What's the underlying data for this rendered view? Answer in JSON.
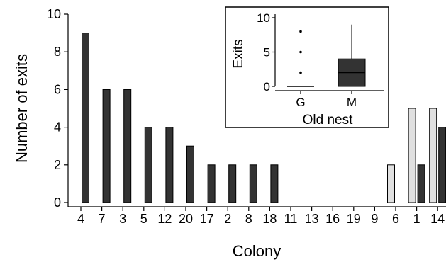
{
  "chart_data": [
    {
      "type": "bar",
      "xlabel": "Colony",
      "ylabel": "Number of exits",
      "ylim": [
        0,
        10
      ],
      "yticks": [
        0,
        2,
        4,
        6,
        8,
        10
      ],
      "categories": [
        "4",
        "7",
        "3",
        "5",
        "12",
        "20",
        "17",
        "2",
        "8",
        "18",
        "11",
        "13",
        "16",
        "19",
        "9",
        "6",
        "1",
        "14"
      ],
      "series": [
        {
          "color": "#e0e0e0",
          "values": [
            0,
            0,
            0,
            0,
            0,
            0,
            0,
            0,
            0,
            0,
            0,
            0,
            0,
            0,
            0,
            2,
            5,
            5
          ]
        },
        {
          "color": "#333333",
          "values": [
            9,
            6,
            6,
            4,
            4,
            3,
            2,
            2,
            2,
            2,
            0,
            0,
            0,
            0,
            0,
            0,
            2,
            4
          ]
        }
      ]
    },
    {
      "type": "box",
      "xlabel": "Old nest",
      "ylabel": "Exits",
      "ylim": [
        0,
        10
      ],
      "yticks": [
        0,
        5,
        10
      ],
      "categories": [
        "G",
        "M"
      ],
      "boxes": [
        {
          "category": "G",
          "q1": 0,
          "median": 0,
          "q3": 0,
          "whisker_low": 0,
          "whisker_high": 0,
          "outliers": [
            2,
            5,
            8
          ],
          "fill": "#ffffff"
        },
        {
          "category": "M",
          "q1": 0,
          "median": 2,
          "q3": 4,
          "whisker_low": 0,
          "whisker_high": 9,
          "outliers": [],
          "fill": "#333333"
        }
      ]
    }
  ]
}
